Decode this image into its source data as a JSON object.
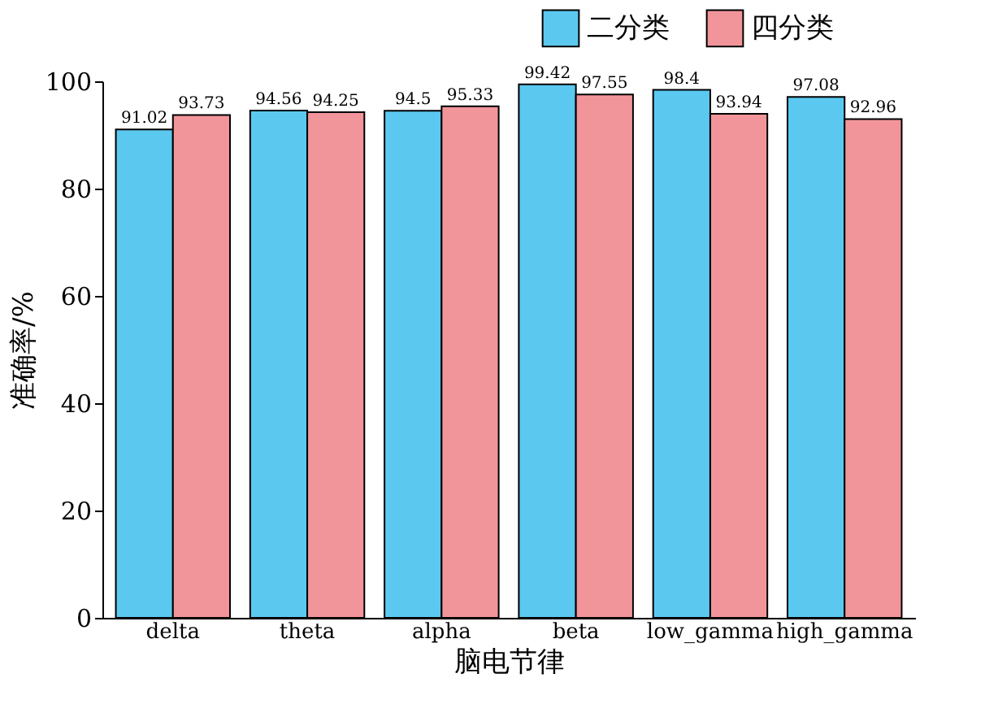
{
  "chart_data": {
    "type": "bar",
    "xlabel": "脑电节律",
    "ylabel": "准确率/%",
    "categories": [
      "delta",
      "theta",
      "alpha",
      "beta",
      "low_gamma",
      "high_gamma"
    ],
    "series": [
      {
        "name": "二分类",
        "color": "#5bc8ef",
        "values": [
          91.02,
          94.56,
          94.5,
          99.42,
          98.4,
          97.08
        ]
      },
      {
        "name": "四分类",
        "color": "#f2959a",
        "values": [
          93.73,
          94.25,
          95.33,
          97.55,
          93.94,
          92.96
        ]
      }
    ],
    "ylim": [
      0,
      100
    ],
    "yticks": [
      0,
      20,
      40,
      60,
      80,
      100
    ],
    "data_labels": true,
    "legend": "top right",
    "grid": false
  }
}
